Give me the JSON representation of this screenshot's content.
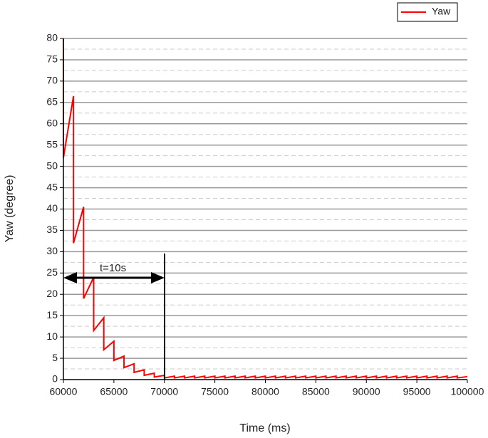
{
  "chart_data": {
    "type": "line",
    "x_label": "Time (ms)",
    "y_label": "Yaw (degree)",
    "annotation": "t=10s",
    "legend": "upper right",
    "grid": true,
    "minor_grid": true,
    "xlim": [
      60000,
      100000
    ],
    "xticks": [
      60000,
      65000,
      70000,
      75000,
      80000,
      85000,
      90000,
      95000,
      100000
    ],
    "ylim": [
      0,
      80
    ],
    "yticks": [
      0,
      5,
      10,
      15,
      20,
      25,
      30,
      35,
      40,
      45,
      50,
      55,
      60,
      65,
      70,
      75,
      80
    ],
    "x": [
      60000,
      60000,
      61000,
      61000,
      62000,
      62000,
      63000,
      63000,
      64000,
      64000,
      65000,
      65000,
      66000,
      66000,
      67000,
      67000,
      68000,
      68000,
      69000,
      69000,
      70000,
      70000,
      71000,
      71000,
      72000,
      72000,
      73000,
      73000,
      74000,
      74000,
      75000,
      75000,
      76000,
      76000,
      77000,
      77000,
      78000,
      78000,
      79000,
      79000,
      80000,
      80000,
      81000,
      81000,
      82000,
      82000,
      83000,
      83000,
      84000,
      84000,
      85000,
      85000,
      86000,
      86000,
      87000,
      87000,
      88000,
      88000,
      89000,
      89000,
      90000,
      90000,
      91000,
      91000,
      92000,
      92000,
      93000,
      93000,
      94000,
      94000,
      95000,
      95000,
      96000,
      96000,
      97000,
      97000,
      98000,
      98000,
      99000,
      99000,
      100000
    ],
    "series": [
      {
        "name": "Yaw",
        "color": "#ff0000",
        "values": [
          80,
          52,
          66.5,
          32,
          40.5,
          19,
          24,
          11.5,
          14.5,
          7,
          9,
          4.5,
          5.5,
          2.8,
          3.7,
          1.7,
          2.3,
          1,
          1.5,
          0.6,
          1,
          0.4,
          0.8,
          0.4,
          0.8,
          0.4,
          0.8,
          0.4,
          0.8,
          0.4,
          0.8,
          0.4,
          0.8,
          0.4,
          0.8,
          0.4,
          0.8,
          0.4,
          0.8,
          0.4,
          0.8,
          0.4,
          0.8,
          0.4,
          0.8,
          0.4,
          0.8,
          0.4,
          0.8,
          0.4,
          0.8,
          0.4,
          0.8,
          0.4,
          0.8,
          0.4,
          0.8,
          0.4,
          0.8,
          0.4,
          0.8,
          0.4,
          0.8,
          0.4,
          0.8,
          0.4,
          0.8,
          0.4,
          0.8,
          0.4,
          0.8,
          0.4,
          0.8,
          0.4,
          0.8,
          0.4,
          0.8,
          0.4,
          0.8,
          0.4,
          0.7
        ]
      }
    ]
  }
}
